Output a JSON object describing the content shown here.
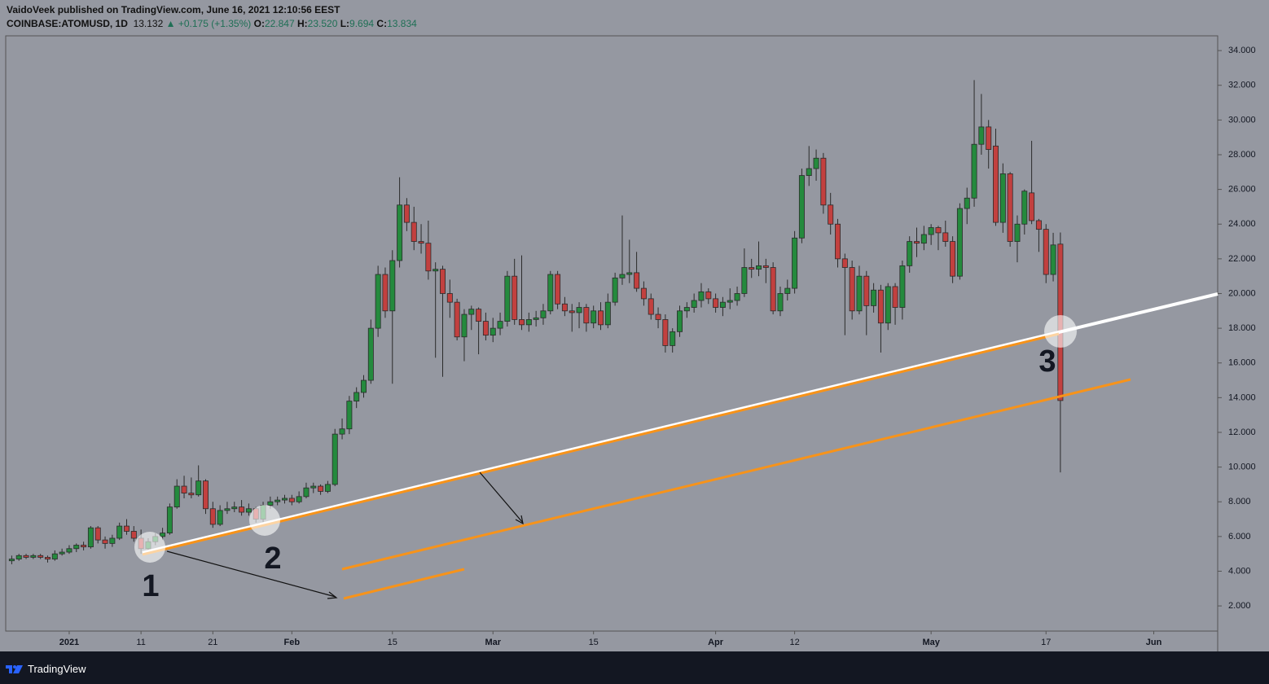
{
  "header": {
    "published": "VaidoVeek published on TradingView.com, June 16, 2021 12:10:56 EEST",
    "symbol": "COINBASE:ATOMUSD, 1D",
    "last": "13.132",
    "change": "+0.175 (+1.35%)",
    "ohlc": [
      {
        "label": "O:",
        "value": "22.847"
      },
      {
        "label": "H:",
        "value": "23.520"
      },
      {
        "label": "L:",
        "value": "9.694"
      },
      {
        "label": "C:",
        "value": "13.834"
      }
    ]
  },
  "footer": {
    "brand": "TradingView"
  },
  "chart_data": {
    "type": "candlestick",
    "up_color": "#248a3d",
    "down_color": "#c2403f",
    "annotations": [
      "1",
      "2",
      "3"
    ],
    "xlim": [
      -0.84,
      167.9
    ],
    "xticks": [
      {
        "value": 8,
        "label": "2021"
      },
      {
        "value": 18,
        "label": "11"
      },
      {
        "value": 28,
        "label": "21"
      },
      {
        "value": 39,
        "label": "Feb"
      },
      {
        "value": 53,
        "label": "15"
      },
      {
        "value": 67,
        "label": "Mar"
      },
      {
        "value": 81,
        "label": "15"
      },
      {
        "value": 98,
        "label": "Apr"
      },
      {
        "value": 109,
        "label": "12"
      },
      {
        "value": 128,
        "label": "May"
      },
      {
        "value": 144,
        "label": "17"
      },
      {
        "value": 159,
        "label": "Jun"
      }
    ],
    "ylim": [
      0.55,
      34.85
    ],
    "yticks": [
      {
        "value": 2,
        "label": "2.000"
      },
      {
        "value": 4,
        "label": "4.000"
      },
      {
        "value": 6,
        "label": "6.000"
      },
      {
        "value": 8,
        "label": "8.000"
      },
      {
        "value": 10,
        "label": "10.000"
      },
      {
        "value": 12,
        "label": "12.000"
      },
      {
        "value": 14,
        "label": "14.000"
      },
      {
        "value": 16,
        "label": "16.000"
      },
      {
        "value": 18,
        "label": "18.000"
      },
      {
        "value": 20,
        "label": "20.000"
      },
      {
        "value": 22,
        "label": "22.000"
      },
      {
        "value": 24,
        "label": "24.000"
      },
      {
        "value": 26,
        "label": "26.000"
      },
      {
        "value": 28,
        "label": "28.000"
      },
      {
        "value": 30,
        "label": "30.000"
      },
      {
        "value": 32,
        "label": "32.000"
      },
      {
        "value": 34,
        "label": "34.000"
      }
    ],
    "candles": [
      [
        4.6,
        4.9,
        4.4,
        4.7
      ],
      [
        4.7,
        5.0,
        4.6,
        4.9
      ],
      [
        4.9,
        5.0,
        4.7,
        4.8
      ],
      [
        4.8,
        5.0,
        4.7,
        4.9
      ],
      [
        4.9,
        5.0,
        4.7,
        4.8
      ],
      [
        4.8,
        4.9,
        4.5,
        4.7
      ],
      [
        4.7,
        5.2,
        4.6,
        5.0
      ],
      [
        5.0,
        5.3,
        4.9,
        5.1
      ],
      [
        5.1,
        5.5,
        5.0,
        5.3
      ],
      [
        5.3,
        5.6,
        5.1,
        5.5
      ],
      [
        5.5,
        5.7,
        5.2,
        5.4
      ],
      [
        5.4,
        6.6,
        5.3,
        6.5
      ],
      [
        6.5,
        6.6,
        5.6,
        5.8
      ],
      [
        5.8,
        6.0,
        5.3,
        5.6
      ],
      [
        5.6,
        6.1,
        5.4,
        5.9
      ],
      [
        5.9,
        6.8,
        5.8,
        6.6
      ],
      [
        6.6,
        7.0,
        6.1,
        6.3
      ],
      [
        6.3,
        6.6,
        5.7,
        5.9
      ],
      [
        5.9,
        6.4,
        5.0,
        5.3
      ],
      [
        5.3,
        5.9,
        5.1,
        5.7
      ],
      [
        5.7,
        6.2,
        5.5,
        6.0
      ],
      [
        6.0,
        6.5,
        5.8,
        6.2
      ],
      [
        6.2,
        7.9,
        6.1,
        7.7
      ],
      [
        7.7,
        9.3,
        7.6,
        8.9
      ],
      [
        8.9,
        9.5,
        8.2,
        8.5
      ],
      [
        8.5,
        9.4,
        8.2,
        8.4
      ],
      [
        8.4,
        10.1,
        8.3,
        9.2
      ],
      [
        9.2,
        9.3,
        7.3,
        7.6
      ],
      [
        7.6,
        8.0,
        6.5,
        6.7
      ],
      [
        6.7,
        7.8,
        6.6,
        7.5
      ],
      [
        7.5,
        8.0,
        7.3,
        7.6
      ],
      [
        7.6,
        8.0,
        7.4,
        7.7
      ],
      [
        7.7,
        8.1,
        7.2,
        7.4
      ],
      [
        7.4,
        7.9,
        7.2,
        7.6
      ],
      [
        7.6,
        7.7,
        6.8,
        7.0
      ],
      [
        7.0,
        8.0,
        6.8,
        7.8
      ],
      [
        7.8,
        8.3,
        7.6,
        8.0
      ],
      [
        8.0,
        8.3,
        7.8,
        8.1
      ],
      [
        8.1,
        8.4,
        7.9,
        8.2
      ],
      [
        8.2,
        8.4,
        7.8,
        8.0
      ],
      [
        8.0,
        8.6,
        7.9,
        8.3
      ],
      [
        8.3,
        9.1,
        8.2,
        8.8
      ],
      [
        8.8,
        9.1,
        8.5,
        8.9
      ],
      [
        8.9,
        9.0,
        8.4,
        8.6
      ],
      [
        8.6,
        9.2,
        8.5,
        9.0
      ],
      [
        9.0,
        12.2,
        8.9,
        11.9
      ],
      [
        11.9,
        12.8,
        11.6,
        12.2
      ],
      [
        12.2,
        14.1,
        11.9,
        13.8
      ],
      [
        13.8,
        14.6,
        13.4,
        14.3
      ],
      [
        14.3,
        15.3,
        14.0,
        15.0
      ],
      [
        15.0,
        18.5,
        14.8,
        18.0
      ],
      [
        18.0,
        21.6,
        17.5,
        21.1
      ],
      [
        21.1,
        21.5,
        18.6,
        19.0
      ],
      [
        19.0,
        22.5,
        14.8,
        21.9
      ],
      [
        21.9,
        26.7,
        21.5,
        25.1
      ],
      [
        25.1,
        25.5,
        23.6,
        24.1
      ],
      [
        24.1,
        25.0,
        22.5,
        23.0
      ],
      [
        23.0,
        24.0,
        22.3,
        22.9
      ],
      [
        22.9,
        24.2,
        20.8,
        21.3
      ],
      [
        21.3,
        21.8,
        16.3,
        21.4
      ],
      [
        21.4,
        21.6,
        15.2,
        20.0
      ],
      [
        20.0,
        20.8,
        18.6,
        19.5
      ],
      [
        19.5,
        19.7,
        17.3,
        17.5
      ],
      [
        17.5,
        19.1,
        16.1,
        18.8
      ],
      [
        18.8,
        19.3,
        17.9,
        19.1
      ],
      [
        19.1,
        19.2,
        16.5,
        18.4
      ],
      [
        18.4,
        18.9,
        17.3,
        17.6
      ],
      [
        17.6,
        18.6,
        17.2,
        18.0
      ],
      [
        18.0,
        18.9,
        17.6,
        18.4
      ],
      [
        18.4,
        21.3,
        18.1,
        21.0
      ],
      [
        21.0,
        22.0,
        18.2,
        18.5
      ],
      [
        18.5,
        22.2,
        17.9,
        18.2
      ],
      [
        18.2,
        18.9,
        17.8,
        18.5
      ],
      [
        18.5,
        19.0,
        18.1,
        18.6
      ],
      [
        18.6,
        19.4,
        18.2,
        19.0
      ],
      [
        19.0,
        21.3,
        18.8,
        21.1
      ],
      [
        21.1,
        21.3,
        19.1,
        19.4
      ],
      [
        19.4,
        19.8,
        18.7,
        19.0
      ],
      [
        19.0,
        19.4,
        17.8,
        18.9
      ],
      [
        18.9,
        19.5,
        18.0,
        19.2
      ],
      [
        19.2,
        19.4,
        17.8,
        18.3
      ],
      [
        18.3,
        19.3,
        18.0,
        19.0
      ],
      [
        19.0,
        19.5,
        17.9,
        18.2
      ],
      [
        18.2,
        20.0,
        18.0,
        19.5
      ],
      [
        19.5,
        21.2,
        19.3,
        20.9
      ],
      [
        20.9,
        24.5,
        20.5,
        21.1
      ],
      [
        21.1,
        23.1,
        20.6,
        21.2
      ],
      [
        21.2,
        22.4,
        20.1,
        20.3
      ],
      [
        20.3,
        20.7,
        19.3,
        19.7
      ],
      [
        19.7,
        20.0,
        18.5,
        18.8
      ],
      [
        18.8,
        19.2,
        18.0,
        18.5
      ],
      [
        18.5,
        18.8,
        16.6,
        17.0
      ],
      [
        17.0,
        18.0,
        16.6,
        17.8
      ],
      [
        17.8,
        19.3,
        17.5,
        19.0
      ],
      [
        19.0,
        19.5,
        18.6,
        19.2
      ],
      [
        19.2,
        20.0,
        18.9,
        19.6
      ],
      [
        19.6,
        20.6,
        19.2,
        20.1
      ],
      [
        20.1,
        20.3,
        19.4,
        19.7
      ],
      [
        19.7,
        20.0,
        18.9,
        19.2
      ],
      [
        19.2,
        19.8,
        18.7,
        19.5
      ],
      [
        19.5,
        20.3,
        19.1,
        19.6
      ],
      [
        19.6,
        20.4,
        19.3,
        20.0
      ],
      [
        20.0,
        22.6,
        19.8,
        21.5
      ],
      [
        21.5,
        22.0,
        20.9,
        21.4
      ],
      [
        21.4,
        23.0,
        21.0,
        21.6
      ],
      [
        21.6,
        22.0,
        20.6,
        21.5
      ],
      [
        21.5,
        21.8,
        18.8,
        19.0
      ],
      [
        19.0,
        20.4,
        18.7,
        20.0
      ],
      [
        20.0,
        20.8,
        19.6,
        20.3
      ],
      [
        20.3,
        23.6,
        20.0,
        23.2
      ],
      [
        23.2,
        27.2,
        22.9,
        26.8
      ],
      [
        26.8,
        28.5,
        26.2,
        27.2
      ],
      [
        27.2,
        28.3,
        26.5,
        27.8
      ],
      [
        27.8,
        28.1,
        24.6,
        25.1
      ],
      [
        25.1,
        25.8,
        23.4,
        24.0
      ],
      [
        24.0,
        24.3,
        21.5,
        22.0
      ],
      [
        22.0,
        22.3,
        17.6,
        21.5
      ],
      [
        21.5,
        21.9,
        18.5,
        19.0
      ],
      [
        19.0,
        21.6,
        18.8,
        21.0
      ],
      [
        21.0,
        21.3,
        17.6,
        19.3
      ],
      [
        19.3,
        20.6,
        18.9,
        20.2
      ],
      [
        20.2,
        20.5,
        16.6,
        18.3
      ],
      [
        18.3,
        20.6,
        17.9,
        20.4
      ],
      [
        20.4,
        20.6,
        18.2,
        19.2
      ],
      [
        19.2,
        21.9,
        18.5,
        21.6
      ],
      [
        21.6,
        23.3,
        21.2,
        23.0
      ],
      [
        23.0,
        23.8,
        22.1,
        22.9
      ],
      [
        22.9,
        23.9,
        22.5,
        23.4
      ],
      [
        23.4,
        24.0,
        22.8,
        23.8
      ],
      [
        23.8,
        23.9,
        22.5,
        23.5
      ],
      [
        23.5,
        24.2,
        22.7,
        23.0
      ],
      [
        23.0,
        23.3,
        20.6,
        21.0
      ],
      [
        21.0,
        25.2,
        20.8,
        24.9
      ],
      [
        24.9,
        26.1,
        24.0,
        25.5
      ],
      [
        25.5,
        32.3,
        25.0,
        28.6
      ],
      [
        28.6,
        31.5,
        28.0,
        29.6
      ],
      [
        29.6,
        30.0,
        27.2,
        28.3
      ],
      [
        28.5,
        29.5,
        23.9,
        24.1
      ],
      [
        24.1,
        27.5,
        23.5,
        26.9
      ],
      [
        26.9,
        27.0,
        22.7,
        23.0
      ],
      [
        23.0,
        24.5,
        21.8,
        24.0
      ],
      [
        24.0,
        26.0,
        23.4,
        25.9
      ],
      [
        25.8,
        28.8,
        24.0,
        24.2
      ],
      [
        24.2,
        24.3,
        22.4,
        23.7
      ],
      [
        23.7,
        24.0,
        20.6,
        21.1
      ],
      [
        21.1,
        23.5,
        20.7,
        22.8
      ],
      [
        22.847,
        23.52,
        9.694,
        13.834
      ]
    ]
  }
}
